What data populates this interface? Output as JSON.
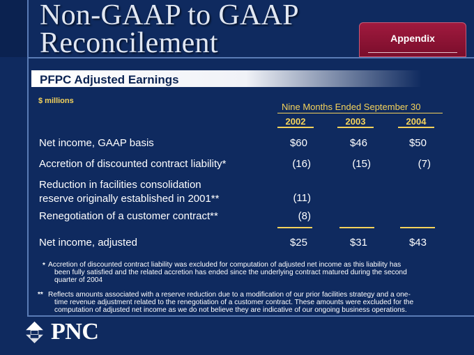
{
  "slide": {
    "title_line1": "Non-GAAP to GAAP",
    "title_line2": "Reconcilement",
    "tag": "Appendix",
    "section_title": "PFPC Adjusted Earnings",
    "units": "$ millions"
  },
  "table": {
    "period_header": "Nine Months Ended September 30",
    "years": [
      "2002",
      "2003",
      "2004"
    ],
    "rows": [
      {
        "label_lines": [
          "Net income, GAAP basis"
        ],
        "values": [
          "$60",
          "$46",
          "$50"
        ]
      },
      {
        "label_lines": [
          "Accretion of discounted contract liability*"
        ],
        "values": [
          "(16)",
          "(15)",
          "(7)"
        ]
      },
      {
        "label_lines": [
          "Reduction in facilities consolidation",
          "reserve originally established in 2001**"
        ],
        "values": [
          "(11)",
          "",
          ""
        ]
      },
      {
        "label_lines": [
          "Renegotiation of a customer contract**"
        ],
        "values": [
          "(8)",
          "",
          ""
        ]
      },
      {
        "label_lines": [
          "Net income, adjusted"
        ],
        "values": [
          "$25",
          "$31",
          "$43"
        ]
      }
    ]
  },
  "footnotes": [
    {
      "mark": "*",
      "lines": [
        "Accretion of discounted contract liability was excluded for computation of adjusted net income as this liability has",
        "been fully satisfied and the related accretion has ended since the underlying contract matured during the second",
        "quarter of 2004"
      ]
    },
    {
      "mark": "**",
      "lines": [
        "Reflects amounts associated with a reserve reduction due to a modification of our prior facilities strategy and a one-",
        "time revenue adjustment related to the renegotiation of a customer contract. These amounts were excluded for the",
        "computation of adjusted net income as we do not believe they are indicative of our ongoing business operations."
      ]
    }
  ],
  "brand": {
    "logo_text": "PNC",
    "logo_icon": "pnc-arrows-icon",
    "background_color": "#0f2a5f",
    "accent_color": "#f5d35b",
    "tag_color": "#8c1434"
  }
}
